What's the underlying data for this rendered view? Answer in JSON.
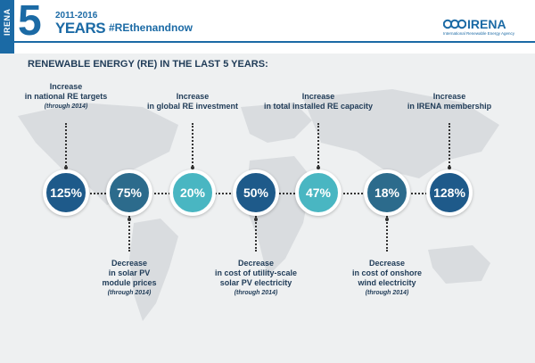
{
  "header": {
    "vertical_label": "IRENA",
    "big_number": "5",
    "years_range": "2011-2016",
    "years_word": "YEARS",
    "hashtag": "#REthenandnow",
    "brand_name": "IRENA",
    "brand_subtitle": "International Renewable Energy Agency"
  },
  "heading": "RENEWABLE ENERGY (RE) IN THE LAST 5 YEARS:",
  "colors": {
    "dark_blue": "#1e5a8a",
    "mid_blue": "#1f7ba6",
    "teal": "#49b6c2",
    "slate": "#2c6b8c",
    "brand_blue": "#1b6aa5"
  },
  "stats": [
    {
      "value": "125%",
      "color": "#1e5a8a",
      "position": "top",
      "line1": "Increase",
      "line2": "in national RE targets",
      "line3": "",
      "note": "(through 2014)"
    },
    {
      "value": "75%",
      "color": "#2c6b8c",
      "position": "bottom",
      "line1": "Decrease",
      "line2": "in solar PV",
      "line3": "module prices",
      "note": "(through 2014)"
    },
    {
      "value": "20%",
      "color": "#49b6c2",
      "position": "top",
      "line1": "Increase",
      "line2": "in global RE investment",
      "line3": "",
      "note": ""
    },
    {
      "value": "50%",
      "color": "#1e5a8a",
      "position": "bottom",
      "line1": "Decrease",
      "line2": "in cost of utility-scale",
      "line3": "solar PV electricity",
      "note": "(through 2014)"
    },
    {
      "value": "47%",
      "color": "#49b6c2",
      "position": "top",
      "line1": "Increase",
      "line2": "in total installed RE capacity",
      "line3": "",
      "note": ""
    },
    {
      "value": "18%",
      "color": "#2c6b8c",
      "position": "bottom",
      "line1": "Decrease",
      "line2": "in cost of onshore",
      "line3": "wind electricity",
      "note": "(through 2014)"
    },
    {
      "value": "128%",
      "color": "#1e5a8a",
      "position": "top",
      "line1": "Increase",
      "line2": "in IRENA membership",
      "line3": "",
      "note": ""
    }
  ]
}
